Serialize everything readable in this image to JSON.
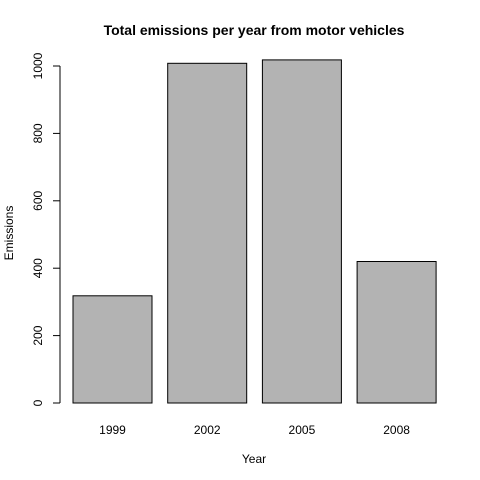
{
  "chart_data": {
    "type": "bar",
    "title": "Total emissions per year from motor vehicles",
    "xlabel": "Year",
    "ylabel": "Emissions",
    "categories": [
      "1999",
      "2002",
      "2005",
      "2008"
    ],
    "values": [
      318,
      1008,
      1018,
      420
    ],
    "ylim": [
      0,
      1000
    ],
    "yticks": [
      0,
      200,
      400,
      600,
      800,
      1000
    ],
    "bar_color": "#b3b3b3",
    "grid": false,
    "legend": "none"
  }
}
